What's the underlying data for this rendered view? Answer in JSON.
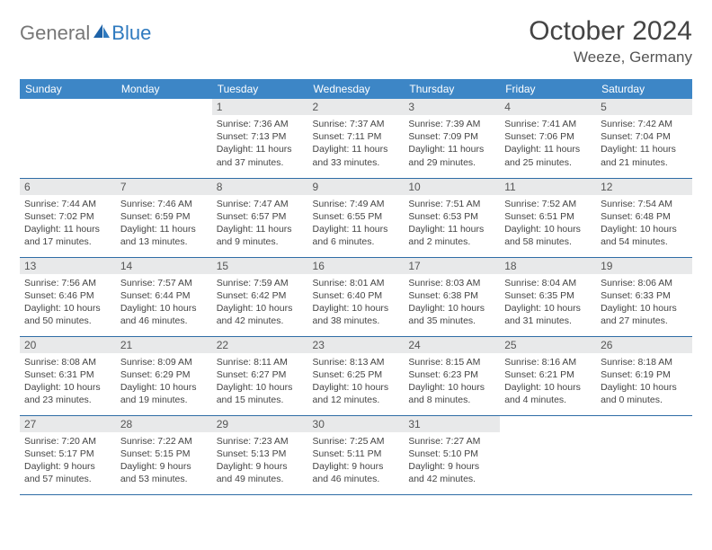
{
  "logo": {
    "text1": "General",
    "text2": "Blue"
  },
  "title": "October 2024",
  "location": "Weeze, Germany",
  "colors": {
    "header_bg": "#3d86c6",
    "header_text": "#ffffff",
    "daynum_bg": "#e8e9ea",
    "row_border": "#2f6da6",
    "logo_gray": "#777777",
    "logo_blue": "#2f7abf"
  },
  "days_of_week": [
    "Sunday",
    "Monday",
    "Tuesday",
    "Wednesday",
    "Thursday",
    "Friday",
    "Saturday"
  ],
  "lead_blanks": 2,
  "days": [
    {
      "n": "1",
      "sr": "Sunrise: 7:36 AM",
      "ss": "Sunset: 7:13 PM",
      "dl": "Daylight: 11 hours and 37 minutes."
    },
    {
      "n": "2",
      "sr": "Sunrise: 7:37 AM",
      "ss": "Sunset: 7:11 PM",
      "dl": "Daylight: 11 hours and 33 minutes."
    },
    {
      "n": "3",
      "sr": "Sunrise: 7:39 AM",
      "ss": "Sunset: 7:09 PM",
      "dl": "Daylight: 11 hours and 29 minutes."
    },
    {
      "n": "4",
      "sr": "Sunrise: 7:41 AM",
      "ss": "Sunset: 7:06 PM",
      "dl": "Daylight: 11 hours and 25 minutes."
    },
    {
      "n": "5",
      "sr": "Sunrise: 7:42 AM",
      "ss": "Sunset: 7:04 PM",
      "dl": "Daylight: 11 hours and 21 minutes."
    },
    {
      "n": "6",
      "sr": "Sunrise: 7:44 AM",
      "ss": "Sunset: 7:02 PM",
      "dl": "Daylight: 11 hours and 17 minutes."
    },
    {
      "n": "7",
      "sr": "Sunrise: 7:46 AM",
      "ss": "Sunset: 6:59 PM",
      "dl": "Daylight: 11 hours and 13 minutes."
    },
    {
      "n": "8",
      "sr": "Sunrise: 7:47 AM",
      "ss": "Sunset: 6:57 PM",
      "dl": "Daylight: 11 hours and 9 minutes."
    },
    {
      "n": "9",
      "sr": "Sunrise: 7:49 AM",
      "ss": "Sunset: 6:55 PM",
      "dl": "Daylight: 11 hours and 6 minutes."
    },
    {
      "n": "10",
      "sr": "Sunrise: 7:51 AM",
      "ss": "Sunset: 6:53 PM",
      "dl": "Daylight: 11 hours and 2 minutes."
    },
    {
      "n": "11",
      "sr": "Sunrise: 7:52 AM",
      "ss": "Sunset: 6:51 PM",
      "dl": "Daylight: 10 hours and 58 minutes."
    },
    {
      "n": "12",
      "sr": "Sunrise: 7:54 AM",
      "ss": "Sunset: 6:48 PM",
      "dl": "Daylight: 10 hours and 54 minutes."
    },
    {
      "n": "13",
      "sr": "Sunrise: 7:56 AM",
      "ss": "Sunset: 6:46 PM",
      "dl": "Daylight: 10 hours and 50 minutes."
    },
    {
      "n": "14",
      "sr": "Sunrise: 7:57 AM",
      "ss": "Sunset: 6:44 PM",
      "dl": "Daylight: 10 hours and 46 minutes."
    },
    {
      "n": "15",
      "sr": "Sunrise: 7:59 AM",
      "ss": "Sunset: 6:42 PM",
      "dl": "Daylight: 10 hours and 42 minutes."
    },
    {
      "n": "16",
      "sr": "Sunrise: 8:01 AM",
      "ss": "Sunset: 6:40 PM",
      "dl": "Daylight: 10 hours and 38 minutes."
    },
    {
      "n": "17",
      "sr": "Sunrise: 8:03 AM",
      "ss": "Sunset: 6:38 PM",
      "dl": "Daylight: 10 hours and 35 minutes."
    },
    {
      "n": "18",
      "sr": "Sunrise: 8:04 AM",
      "ss": "Sunset: 6:35 PM",
      "dl": "Daylight: 10 hours and 31 minutes."
    },
    {
      "n": "19",
      "sr": "Sunrise: 8:06 AM",
      "ss": "Sunset: 6:33 PM",
      "dl": "Daylight: 10 hours and 27 minutes."
    },
    {
      "n": "20",
      "sr": "Sunrise: 8:08 AM",
      "ss": "Sunset: 6:31 PM",
      "dl": "Daylight: 10 hours and 23 minutes."
    },
    {
      "n": "21",
      "sr": "Sunrise: 8:09 AM",
      "ss": "Sunset: 6:29 PM",
      "dl": "Daylight: 10 hours and 19 minutes."
    },
    {
      "n": "22",
      "sr": "Sunrise: 8:11 AM",
      "ss": "Sunset: 6:27 PM",
      "dl": "Daylight: 10 hours and 15 minutes."
    },
    {
      "n": "23",
      "sr": "Sunrise: 8:13 AM",
      "ss": "Sunset: 6:25 PM",
      "dl": "Daylight: 10 hours and 12 minutes."
    },
    {
      "n": "24",
      "sr": "Sunrise: 8:15 AM",
      "ss": "Sunset: 6:23 PM",
      "dl": "Daylight: 10 hours and 8 minutes."
    },
    {
      "n": "25",
      "sr": "Sunrise: 8:16 AM",
      "ss": "Sunset: 6:21 PM",
      "dl": "Daylight: 10 hours and 4 minutes."
    },
    {
      "n": "26",
      "sr": "Sunrise: 8:18 AM",
      "ss": "Sunset: 6:19 PM",
      "dl": "Daylight: 10 hours and 0 minutes."
    },
    {
      "n": "27",
      "sr": "Sunrise: 7:20 AM",
      "ss": "Sunset: 5:17 PM",
      "dl": "Daylight: 9 hours and 57 minutes."
    },
    {
      "n": "28",
      "sr": "Sunrise: 7:22 AM",
      "ss": "Sunset: 5:15 PM",
      "dl": "Daylight: 9 hours and 53 minutes."
    },
    {
      "n": "29",
      "sr": "Sunrise: 7:23 AM",
      "ss": "Sunset: 5:13 PM",
      "dl": "Daylight: 9 hours and 49 minutes."
    },
    {
      "n": "30",
      "sr": "Sunrise: 7:25 AM",
      "ss": "Sunset: 5:11 PM",
      "dl": "Daylight: 9 hours and 46 minutes."
    },
    {
      "n": "31",
      "sr": "Sunrise: 7:27 AM",
      "ss": "Sunset: 5:10 PM",
      "dl": "Daylight: 9 hours and 42 minutes."
    }
  ]
}
